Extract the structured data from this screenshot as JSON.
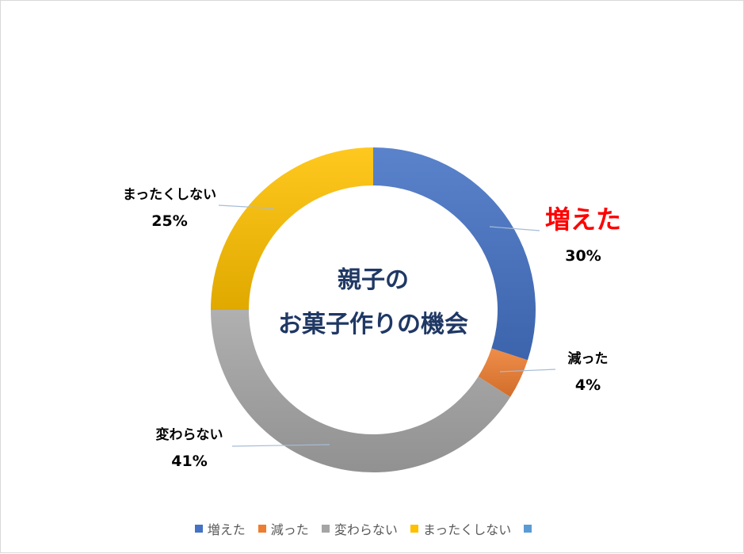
{
  "chart_data": {
    "type": "pie",
    "variant": "donut",
    "title": "親子の\nお菓子作りの機会",
    "title_lines": [
      "親子の",
      "お菓子作りの機会"
    ],
    "categories": [
      "増えた",
      "減った",
      "変わらない",
      "まったくしない"
    ],
    "values": [
      30,
      4,
      41,
      25
    ],
    "value_labels": [
      "30%",
      "4%",
      "41%",
      "25%"
    ],
    "colors": [
      "#4472c4",
      "#ed7d31",
      "#a5a5a5",
      "#ffc000"
    ],
    "highlight": {
      "category": "増えた",
      "color": "#ff0000"
    },
    "legend": {
      "position": "bottom",
      "entries": [
        "増えた",
        "減った",
        "変わらない",
        "まったくしない",
        ""
      ],
      "colors": [
        "#4472c4",
        "#ed7d31",
        "#a5a5a5",
        "#ffc000",
        "#5b9bd5"
      ]
    }
  }
}
